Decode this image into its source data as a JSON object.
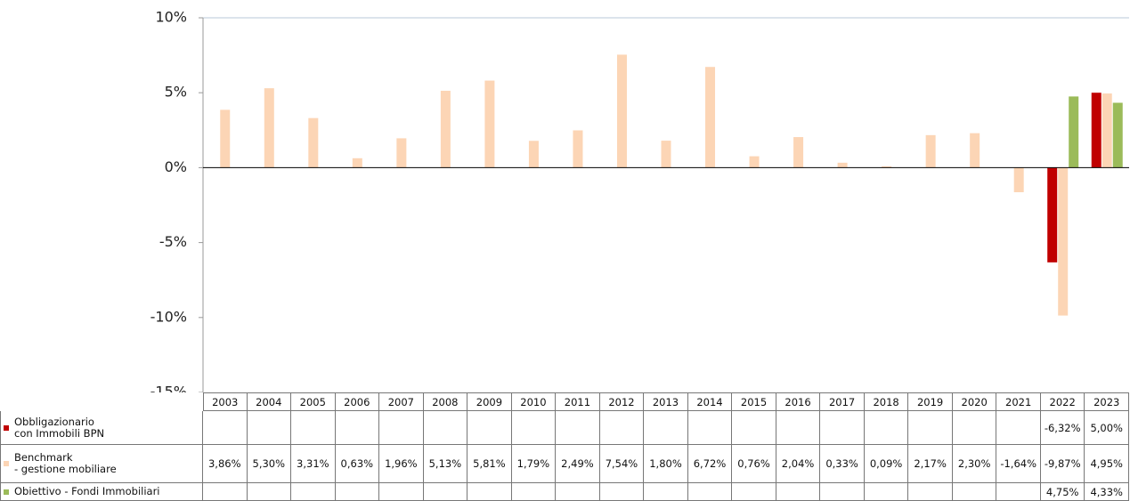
{
  "chart_data": {
    "type": "bar",
    "categories": [
      "2003",
      "2004",
      "2005",
      "2006",
      "2007",
      "2008",
      "2009",
      "2010",
      "2011",
      "2012",
      "2013",
      "2014",
      "2015",
      "2016",
      "2017",
      "2018",
      "2019",
      "2020",
      "2021",
      "2022",
      "2023"
    ],
    "ylim": [
      -15,
      10
    ],
    "yticks": [
      {
        "value": -15,
        "label": "-15%"
      },
      {
        "value": -10,
        "label": "-10%"
      },
      {
        "value": -5,
        "label": "-5%"
      },
      {
        "value": 0,
        "label": "0%"
      },
      {
        "value": 5,
        "label": "5%"
      },
      {
        "value": 10,
        "label": "10%"
      }
    ],
    "grid": false,
    "series": [
      {
        "name": "Obbligazionario\ncon Immobili  BPN",
        "color": "#c00000",
        "values": [
          null,
          null,
          null,
          null,
          null,
          null,
          null,
          null,
          null,
          null,
          null,
          null,
          null,
          null,
          null,
          null,
          null,
          null,
          null,
          -6.32,
          5.0
        ],
        "value_labels": [
          null,
          null,
          null,
          null,
          null,
          null,
          null,
          null,
          null,
          null,
          null,
          null,
          null,
          null,
          null,
          null,
          null,
          null,
          null,
          "-6,32%",
          "5,00%"
        ]
      },
      {
        "name": "Benchmark\n - gestione mobiliare",
        "color": "#fcd5b5",
        "values": [
          3.86,
          5.3,
          3.31,
          0.63,
          1.96,
          5.13,
          5.81,
          1.79,
          2.49,
          7.54,
          1.8,
          6.72,
          0.76,
          2.04,
          0.33,
          0.09,
          2.17,
          2.3,
          -1.64,
          -9.87,
          4.95
        ],
        "value_labels": [
          "3,86%",
          "5,30%",
          "3,31%",
          "0,63%",
          "1,96%",
          "5,13%",
          "5,81%",
          "1,79%",
          "2,49%",
          "7,54%",
          "1,80%",
          "6,72%",
          "0,76%",
          "2,04%",
          "0,33%",
          "0,09%",
          "2,17%",
          "2,30%",
          "-1,64%",
          "-9,87%",
          "4,95%"
        ]
      },
      {
        "name": "Obiettivo - Fondi Immobiliari",
        "color": "#9bbb59",
        "values": [
          null,
          null,
          null,
          null,
          null,
          null,
          null,
          null,
          null,
          null,
          null,
          null,
          null,
          null,
          null,
          null,
          null,
          null,
          null,
          4.75,
          4.33
        ],
        "value_labels": [
          null,
          null,
          null,
          null,
          null,
          null,
          null,
          null,
          null,
          null,
          null,
          null,
          null,
          null,
          null,
          null,
          null,
          null,
          null,
          "4,75%",
          "4,33%"
        ]
      }
    ]
  }
}
